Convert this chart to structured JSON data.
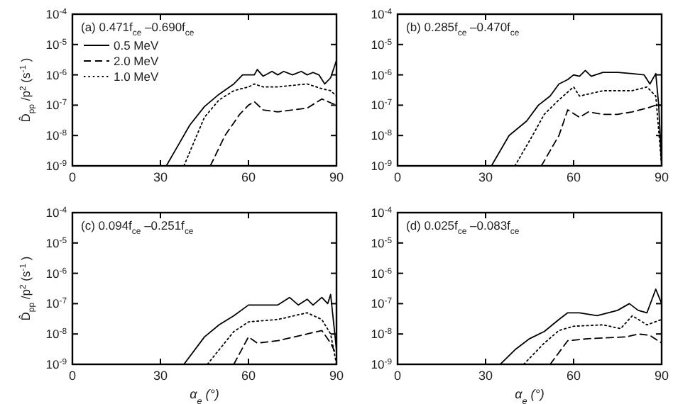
{
  "chart_data": [
    {
      "type": "line",
      "title": "(a) 0.471f$_{ce}$–0.690f$_{ce}$",
      "ylabel": "D̂$_{pp}$/p$^{2}$ (s$^{-1}$)",
      "log": "y",
      "legend": "top left",
      "xlim": [
        0,
        90
      ],
      "xticks": [
        0,
        30,
        60,
        90
      ],
      "ylim": [
        1e-09,
        0.0001
      ],
      "yticks": [
        {
          "value": 1e-09,
          "label": "10$^{-9}$"
        },
        {
          "value": 1e-08,
          "label": "10$^{-8}$"
        },
        {
          "value": 1e-07,
          "label": "10$^{-7}$"
        },
        {
          "value": 1e-06,
          "label": "10$^{-6}$"
        },
        {
          "value": 1e-05,
          "label": "10$^{-5}$"
        },
        {
          "value": 0.0001,
          "label": "10$^{-4}$"
        }
      ],
      "series": [
        {
          "name": "0.5 MeV",
          "color": "#000000",
          "line_style": "solid",
          "x": [
            32,
            40,
            45,
            50,
            55,
            58,
            60,
            62,
            63,
            65,
            68,
            70,
            72,
            75,
            78,
            80,
            82,
            84,
            86,
            88,
            90
          ],
          "values": [
            1e-09,
            2.2e-08,
            9e-08,
            2.3e-07,
            5e-07,
            1e-06,
            1e-06,
            1e-06,
            1.5e-06,
            9e-07,
            1.3e-06,
            1e-06,
            1.3e-06,
            1e-06,
            1.3e-06,
            1e-06,
            1.2e-06,
            1e-06,
            5e-07,
            8e-07,
            3e-06
          ]
        },
        {
          "name": "2.0 MeV",
          "color": "#000000",
          "line_style": "dashed",
          "x": [
            47,
            52,
            57,
            60,
            62,
            65,
            70,
            75,
            80,
            85,
            88,
            90
          ],
          "values": [
            1e-09,
            1e-08,
            5e-08,
            1e-07,
            1.3e-07,
            7e-08,
            6e-08,
            7e-08,
            8e-08,
            1.6e-07,
            1.2e-07,
            1e-07
          ]
        },
        {
          "name": "1.0 MeV",
          "color": "#000000",
          "line_style": "dotted",
          "x": [
            38,
            45,
            50,
            55,
            60,
            62,
            65,
            70,
            75,
            80,
            85,
            88,
            90
          ],
          "values": [
            1e-09,
            4e-08,
            1.5e-07,
            3e-07,
            4e-07,
            5e-07,
            4e-07,
            4e-07,
            4.5e-07,
            5e-07,
            3.5e-07,
            3e-07,
            2e-07
          ]
        }
      ]
    },
    {
      "type": "line",
      "title": "(b) 0.285f$_{ce}$–0.470f$_{ce}$",
      "log": "y",
      "xlim": [
        0,
        90
      ],
      "xticks": [
        0,
        30,
        60,
        90
      ],
      "ylim": [
        1e-09,
        0.0001
      ],
      "yticks": [
        {
          "value": 1e-09,
          "label": "10$^{-9}$"
        },
        {
          "value": 1e-08,
          "label": "10$^{-8}$"
        },
        {
          "value": 1e-07,
          "label": "10$^{-7}$"
        },
        {
          "value": 1e-06,
          "label": "10$^{-6}$"
        },
        {
          "value": 1e-05,
          "label": "10$^{-5}$"
        },
        {
          "value": 0.0001,
          "label": "10$^{-4}$"
        }
      ],
      "series": [
        {
          "color": "#000000",
          "line_style": "solid",
          "x": [
            32,
            38,
            44,
            48,
            52,
            55,
            58,
            60,
            62,
            64,
            66,
            70,
            75,
            80,
            84,
            86,
            88,
            89,
            90
          ],
          "values": [
            1e-09,
            1e-08,
            3e-08,
            1e-07,
            2e-07,
            5e-07,
            7e-07,
            1e-06,
            9e-07,
            1.4e-06,
            9e-07,
            1.2e-06,
            1.2e-06,
            1.1e-06,
            1e-06,
            5e-07,
            1.1e-06,
            1e-07,
            1e-09
          ]
        },
        {
          "color": "#000000",
          "line_style": "dashed",
          "x": [
            49,
            55,
            58,
            62,
            65,
            70,
            75,
            80,
            85,
            88,
            90
          ],
          "values": [
            1e-09,
            1e-08,
            7e-08,
            4e-08,
            6e-08,
            5e-08,
            5e-08,
            6e-08,
            8e-08,
            1e-07,
            1e-07
          ]
        },
        {
          "color": "#000000",
          "line_style": "dotted",
          "x": [
            40,
            46,
            50,
            55,
            60,
            62,
            70,
            75,
            80,
            85,
            88,
            90
          ],
          "values": [
            1e-09,
            1e-08,
            5e-08,
            1.5e-07,
            4e-07,
            2e-07,
            3e-07,
            3e-07,
            3e-07,
            4e-07,
            2e-07,
            1e-09
          ]
        }
      ]
    },
    {
      "type": "line",
      "title": "(c) 0.094f$_{ce}$–0.251f$_{ce}$",
      "ylabel": "D̂$_{pp}$/p$^{2}$ (s$^{-1}$)",
      "xlabel": "α$_{e}$ (°)",
      "log": "y",
      "xlim": [
        0,
        90
      ],
      "xticks": [
        0,
        30,
        60,
        90
      ],
      "ylim": [
        1e-09,
        0.0001
      ],
      "yticks": [
        {
          "value": 1e-09,
          "label": "10$^{-9}$"
        },
        {
          "value": 1e-08,
          "label": "10$^{-8}$"
        },
        {
          "value": 1e-07,
          "label": "10$^{-7}$"
        },
        {
          "value": 1e-06,
          "label": "10$^{-6}$"
        },
        {
          "value": 1e-05,
          "label": "10$^{-5}$"
        },
        {
          "value": 0.0001,
          "label": "10$^{-4}$"
        }
      ],
      "series": [
        {
          "color": "#000000",
          "line_style": "solid",
          "x": [
            38,
            45,
            50,
            55,
            60,
            70,
            74,
            77,
            80,
            82,
            85,
            87,
            88,
            90
          ],
          "values": [
            1e-09,
            8e-09,
            2e-08,
            4e-08,
            9e-08,
            9e-08,
            1.6e-07,
            9e-08,
            1.4e-07,
            9e-08,
            1.6e-07,
            1e-07,
            2e-07,
            3e-09
          ]
        },
        {
          "color": "#000000",
          "line_style": "dashed",
          "x": [
            55,
            60,
            63,
            70,
            80,
            85,
            88,
            90
          ],
          "values": [
            1e-09,
            8e-09,
            5e-09,
            6e-09,
            1e-08,
            1.3e-08,
            5e-09,
            2e-09
          ]
        },
        {
          "color": "#000000",
          "line_style": "dotted",
          "x": [
            46,
            55,
            60,
            70,
            80,
            85,
            88,
            90
          ],
          "values": [
            1e-09,
            1.2e-08,
            2.5e-08,
            3e-08,
            5e-08,
            3e-08,
            1e-08,
            1e-09
          ]
        }
      ]
    },
    {
      "type": "line",
      "title": "(d) 0.025f$_{ce}$–0.083f$_{ce}$",
      "xlabel": "α$_{e}$ (°)",
      "log": "y",
      "xlim": [
        0,
        90
      ],
      "xticks": [
        0,
        30,
        60,
        90
      ],
      "ylim": [
        1e-09,
        0.0001
      ],
      "yticks": [
        {
          "value": 1e-09,
          "label": "10$^{-9}$"
        },
        {
          "value": 1e-08,
          "label": "10$^{-8}$"
        },
        {
          "value": 1e-07,
          "label": "10$^{-7}$"
        },
        {
          "value": 1e-06,
          "label": "10$^{-6}$"
        },
        {
          "value": 1e-05,
          "label": "10$^{-5}$"
        },
        {
          "value": 0.0001,
          "label": "10$^{-4}$"
        }
      ],
      "series": [
        {
          "color": "#000000",
          "line_style": "solid",
          "x": [
            35,
            40,
            45,
            50,
            55,
            58,
            62,
            68,
            75,
            79,
            82,
            85,
            88,
            90
          ],
          "values": [
            1e-09,
            3e-09,
            7e-09,
            1.2e-08,
            3e-08,
            5e-08,
            5e-08,
            4e-08,
            6e-08,
            1e-07,
            6e-08,
            5e-08,
            3e-07,
            1e-07
          ]
        },
        {
          "color": "#000000",
          "line_style": "dashed",
          "x": [
            52,
            58,
            65,
            78,
            82,
            86,
            90
          ],
          "values": [
            1e-09,
            6e-09,
            7e-09,
            8e-09,
            1e-08,
            9e-09,
            5e-09
          ]
        },
        {
          "color": "#000000",
          "line_style": "dotted",
          "x": [
            43,
            50,
            55,
            60,
            70,
            76,
            80,
            85,
            90
          ],
          "values": [
            1e-09,
            5e-09,
            1.3e-08,
            1.8e-08,
            2e-08,
            1.5e-08,
            4e-08,
            2e-08,
            3e-08
          ]
        }
      ]
    }
  ]
}
